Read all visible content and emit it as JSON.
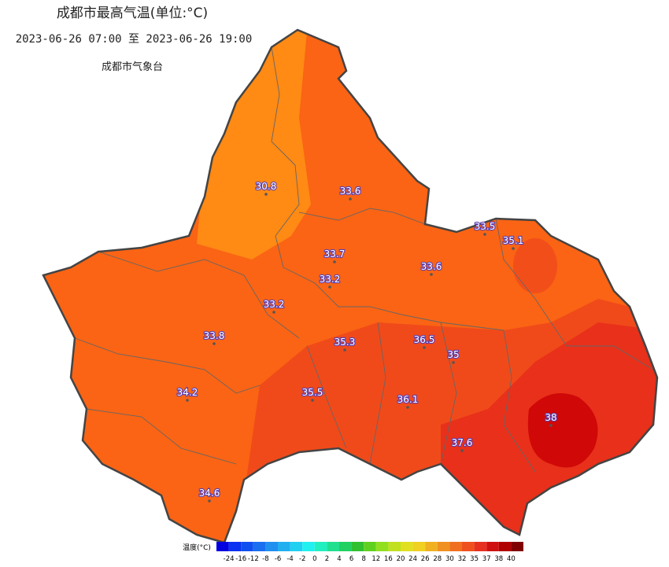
{
  "header": {
    "title": "成都市最高气温(单位:°C)",
    "period": "2023-06-26 07:00 至 2023-06-26 19:00",
    "source": "成都市气象台"
  },
  "stations": [
    30.8,
    33.6,
    33.5,
    35.1,
    33.7,
    33.6,
    33.2,
    33.2,
    33.8,
    35.3,
    36.5,
    35,
    35.5,
    36.1,
    34.2,
    38,
    37.6,
    34.6
  ],
  "legend": {
    "label": "温度(°C)",
    "ticks": [
      -24,
      -16,
      -12,
      -8,
      -6,
      -4,
      -2,
      0,
      2,
      4,
      6,
      8,
      12,
      16,
      20,
      24,
      26,
      28,
      30,
      32,
      35,
      37,
      38,
      40
    ],
    "colors": [
      "#0000e0",
      "#0a32f0",
      "#1050f0",
      "#1a6ef0",
      "#2090f0",
      "#20b0f0",
      "#20d0f0",
      "#20f0f0",
      "#20f0c0",
      "#20e090",
      "#20d060",
      "#30c030",
      "#60d020",
      "#90e020",
      "#c0e020",
      "#e0e020",
      "#f0d020",
      "#f0b020",
      "#f09020",
      "#f07020",
      "#f05020",
      "#e83020",
      "#d01010",
      "#b00000",
      "#800000"
    ]
  }
}
